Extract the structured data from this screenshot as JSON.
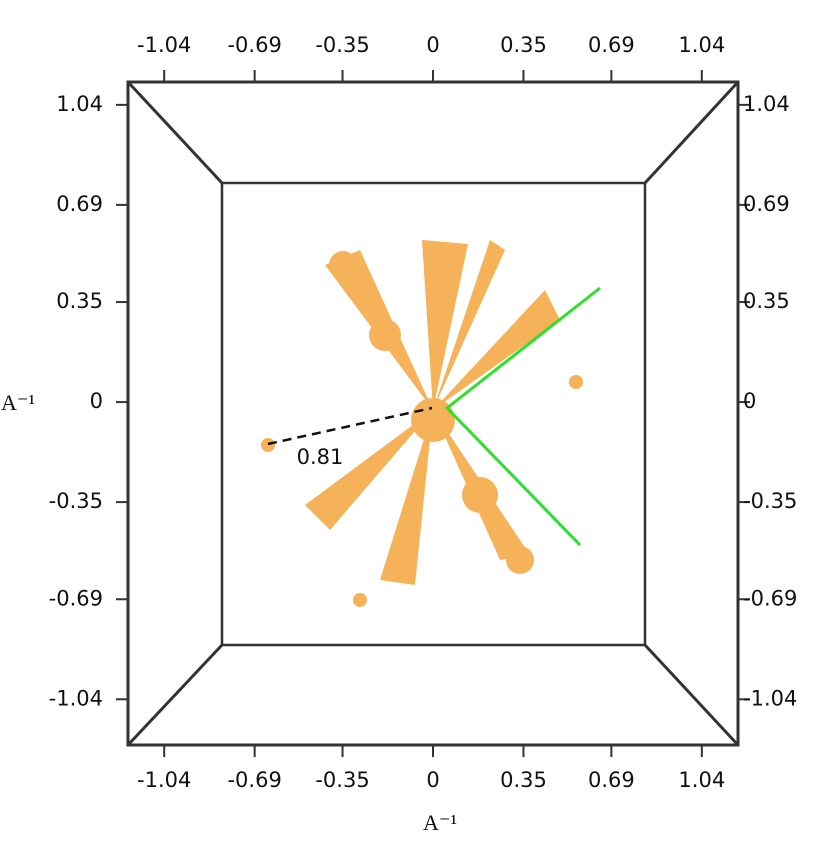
{
  "chart_data": {
    "type": "pattern",
    "xlabel": "A⁻¹",
    "ylabel": "A⁻¹",
    "xlim": [
      -1.18,
      1.18
    ],
    "ylim": [
      -1.2,
      1.12
    ],
    "xticks": [
      -1.04,
      -0.69,
      -0.35,
      0,
      0.35,
      0.69,
      1.04
    ],
    "yticks": [
      -1.04,
      -0.69,
      -0.35,
      0,
      0.35,
      0.69,
      1.04
    ],
    "annotations": [
      {
        "label": "0.81"
      }
    ],
    "color": "#f5a030"
  }
}
